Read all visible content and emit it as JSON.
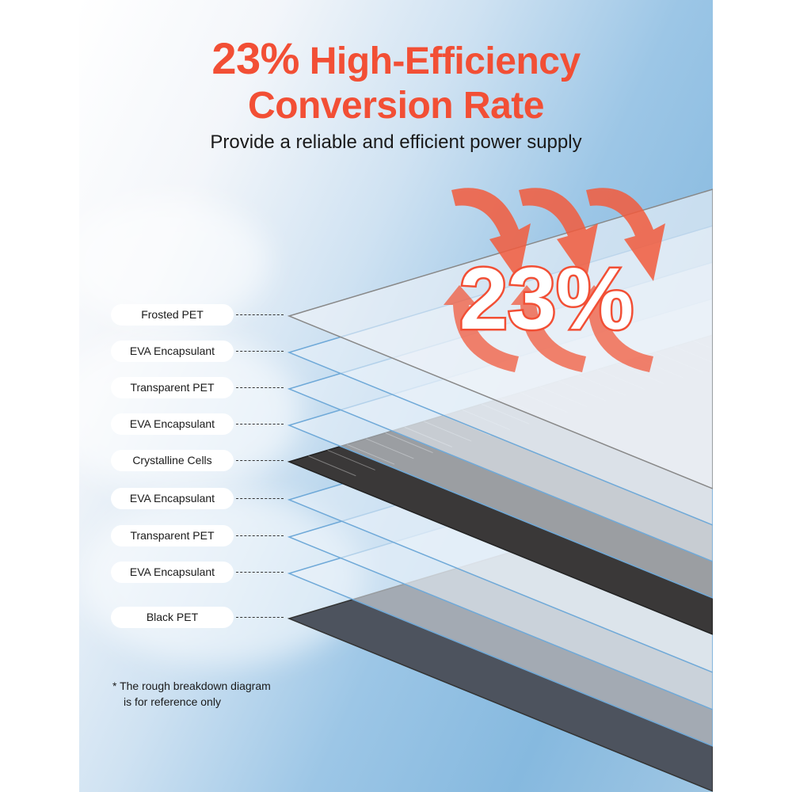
{
  "title": {
    "highlight": "23%",
    "line1_rest": "High-Efficiency",
    "line2": "Conversion Rate"
  },
  "subtitle": "Provide a reliable and efficient power supply",
  "badge": "23%",
  "layers": [
    {
      "label": "Frosted PET"
    },
    {
      "label": "EVA Encapsulant"
    },
    {
      "label": "Transparent PET"
    },
    {
      "label": "EVA Encapsulant"
    },
    {
      "label": "Crystalline Cells"
    },
    {
      "label": "EVA Encapsulant"
    },
    {
      "label": "Transparent PET"
    },
    {
      "label": "EVA Encapsulant"
    },
    {
      "label": "Black PET"
    }
  ],
  "note": {
    "symbol": "*",
    "line1": "The rough breakdown diagram",
    "line2": "is for reference only"
  },
  "colors": {
    "accent": "#f24f35",
    "cells": "#3a3838",
    "black_pet": "#4d535e"
  }
}
